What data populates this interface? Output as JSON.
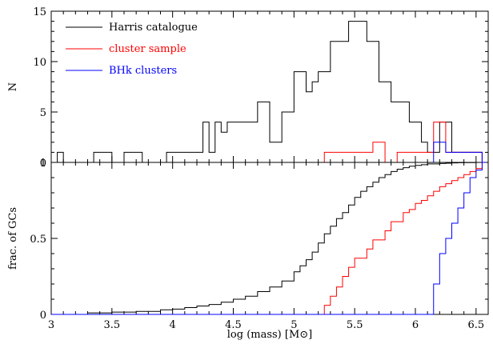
{
  "chart_data": [
    {
      "type": "histogram",
      "panel": "top",
      "ylabel": "N",
      "xlim": [
        3.0,
        6.6
      ],
      "ylim": [
        0,
        15
      ],
      "yticks": [
        "0",
        "5",
        "10",
        "15"
      ],
      "legend": {
        "placement": "top-left",
        "entries": [
          {
            "label": "Harris catalogue",
            "color": "#000000"
          },
          {
            "label": "cluster sample",
            "color": "#ff0000"
          },
          {
            "label": "BHk clusters",
            "color": "#0000ff"
          }
        ]
      },
      "series": [
        {
          "name": "Harris catalogue",
          "color": "#000000",
          "steps": [
            [
              3.0,
              0
            ],
            [
              3.05,
              1
            ],
            [
              3.1,
              0
            ],
            [
              3.35,
              1
            ],
            [
              3.5,
              0
            ],
            [
              3.6,
              1
            ],
            [
              3.75,
              0
            ],
            [
              3.95,
              1
            ],
            [
              4.25,
              4
            ],
            [
              4.3,
              1
            ],
            [
              4.35,
              4
            ],
            [
              4.4,
              3
            ],
            [
              4.45,
              4
            ],
            [
              4.7,
              6
            ],
            [
              4.8,
              2
            ],
            [
              4.9,
              5
            ],
            [
              5.0,
              9
            ],
            [
              5.1,
              7
            ],
            [
              5.15,
              8
            ],
            [
              5.2,
              9
            ],
            [
              5.3,
              12
            ],
            [
              5.45,
              14
            ],
            [
              5.6,
              12
            ],
            [
              5.7,
              8
            ],
            [
              5.8,
              6
            ],
            [
              5.95,
              4
            ],
            [
              6.05,
              2
            ],
            [
              6.1,
              1
            ],
            [
              6.2,
              4
            ],
            [
              6.3,
              1
            ],
            [
              6.55,
              0
            ]
          ]
        },
        {
          "name": "cluster sample",
          "color": "#ff0000",
          "steps": [
            [
              5.25,
              1
            ],
            [
              5.65,
              2
            ],
            [
              5.75,
              0
            ],
            [
              5.85,
              1
            ],
            [
              6.15,
              4
            ],
            [
              6.25,
              1
            ],
            [
              6.55,
              0
            ]
          ]
        },
        {
          "name": "BHk clusters",
          "color": "#0000ff",
          "steps": [
            [
              6.15,
              2
            ],
            [
              6.25,
              1
            ],
            [
              6.55,
              0
            ]
          ]
        }
      ]
    },
    {
      "type": "line",
      "panel": "bottom",
      "ylabel": "frac. of GCs",
      "xlabel": "log (mass) [M⊙]",
      "xlim": [
        3.0,
        6.6
      ],
      "ylim": [
        0,
        1.0
      ],
      "xticks": [
        "3",
        "3.5",
        "4",
        "4.5",
        "5",
        "5.5",
        "6",
        "6.5"
      ],
      "yticks": [
        "0",
        "0.5",
        "1"
      ],
      "series": [
        {
          "name": "Harris catalogue",
          "color": "#000000",
          "x": [
            3.0,
            3.3,
            3.5,
            3.7,
            3.9,
            4.0,
            4.1,
            4.2,
            4.3,
            4.4,
            4.5,
            4.6,
            4.7,
            4.8,
            4.9,
            5.0,
            5.05,
            5.1,
            5.15,
            5.2,
            5.25,
            5.3,
            5.35,
            5.4,
            5.45,
            5.5,
            5.55,
            5.6,
            5.65,
            5.7,
            5.75,
            5.8,
            5.85,
            5.9,
            5.95,
            6.0,
            6.05,
            6.1,
            6.15,
            6.2,
            6.25,
            6.3,
            6.35,
            6.4,
            6.5,
            6.58
          ],
          "y": [
            0.0,
            0.01,
            0.015,
            0.02,
            0.03,
            0.035,
            0.045,
            0.055,
            0.065,
            0.08,
            0.1,
            0.12,
            0.15,
            0.18,
            0.22,
            0.28,
            0.32,
            0.36,
            0.41,
            0.47,
            0.53,
            0.58,
            0.63,
            0.67,
            0.72,
            0.77,
            0.81,
            0.84,
            0.87,
            0.9,
            0.92,
            0.94,
            0.955,
            0.965,
            0.975,
            0.98,
            0.985,
            0.99,
            0.99,
            0.993,
            0.995,
            0.997,
            0.998,
            0.999,
            1.0,
            1.0
          ]
        },
        {
          "name": "cluster sample",
          "color": "#ff0000",
          "x": [
            3.0,
            5.25,
            5.3,
            5.35,
            5.4,
            5.45,
            5.5,
            5.55,
            5.6,
            5.65,
            5.7,
            5.75,
            5.8,
            5.85,
            5.9,
            5.95,
            6.0,
            6.05,
            6.1,
            6.15,
            6.2,
            6.25,
            6.3,
            6.35,
            6.4,
            6.45,
            6.5,
            6.55,
            6.58
          ],
          "y": [
            0.0,
            0.06,
            0.12,
            0.18,
            0.25,
            0.31,
            0.37,
            0.37,
            0.43,
            0.49,
            0.49,
            0.55,
            0.61,
            0.61,
            0.67,
            0.69,
            0.73,
            0.75,
            0.78,
            0.81,
            0.84,
            0.86,
            0.88,
            0.9,
            0.92,
            0.94,
            0.96,
            1.0,
            1.0
          ]
        },
        {
          "name": "BHk clusters",
          "color": "#0000ff",
          "x": [
            3.0,
            6.15,
            6.2,
            6.25,
            6.3,
            6.35,
            6.4,
            6.45,
            6.5,
            6.55,
            6.58
          ],
          "y": [
            0.0,
            0.2,
            0.4,
            0.5,
            0.6,
            0.7,
            0.8,
            0.9,
            0.95,
            1.0,
            1.0
          ]
        }
      ]
    }
  ]
}
